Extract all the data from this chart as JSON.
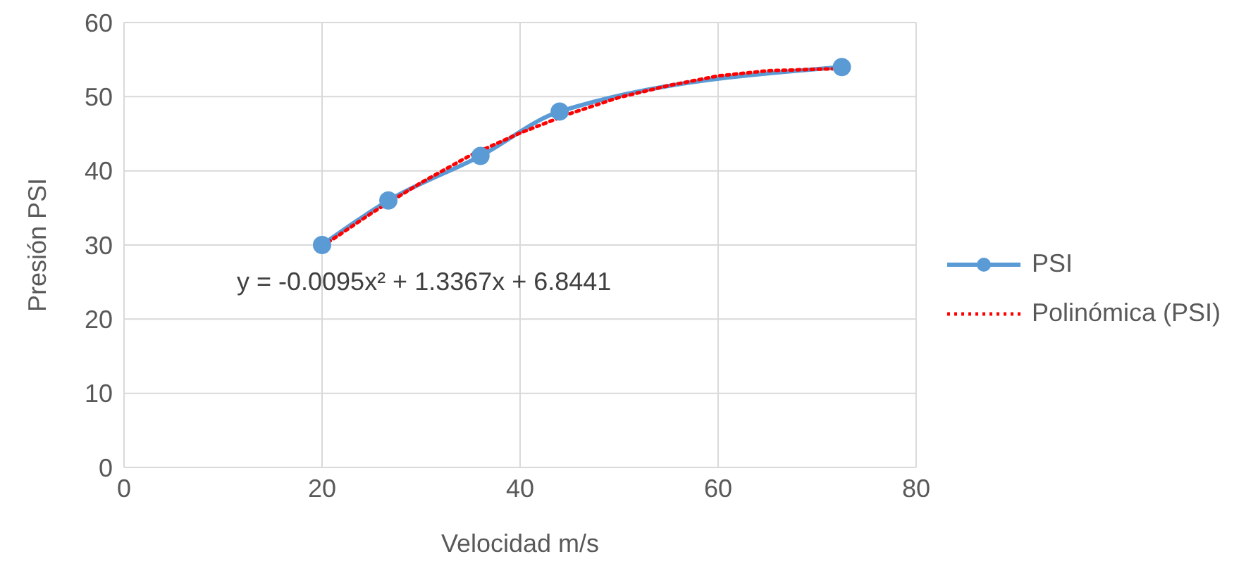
{
  "chart_data": {
    "type": "line",
    "xlabel": "Velocidad m/s",
    "ylabel": "Presión PSI",
    "xlim": [
      0,
      80
    ],
    "xticks": [
      0,
      20,
      40,
      60,
      80
    ],
    "ylim": [
      0,
      60
    ],
    "yticks": [
      0,
      10,
      20,
      30,
      40,
      50,
      60
    ],
    "grid": true,
    "legend": "right",
    "annotations": [
      "y = -0.0095x² + 1.3367x + 6.8441"
    ],
    "series": [
      {
        "name": "PSI",
        "color": "#5b9bd5",
        "marker": "circle",
        "line_style": "solid",
        "x": [
          20,
          26.7,
          36,
          44,
          72.5
        ],
        "values": [
          30,
          36,
          42,
          48,
          54
        ]
      },
      {
        "name": "Polinómica (PSI)",
        "color": "#ff0000",
        "marker": "none",
        "line_style": "dotted",
        "x": [
          20,
          25,
          30,
          35,
          40,
          45,
          50,
          55,
          60,
          65,
          72.5
        ],
        "values": [
          29.8,
          34.3,
          38.4,
          42.1,
          45.1,
          47.7,
          49.9,
          51.5,
          52.8,
          53.5,
          53.8
        ]
      }
    ]
  }
}
